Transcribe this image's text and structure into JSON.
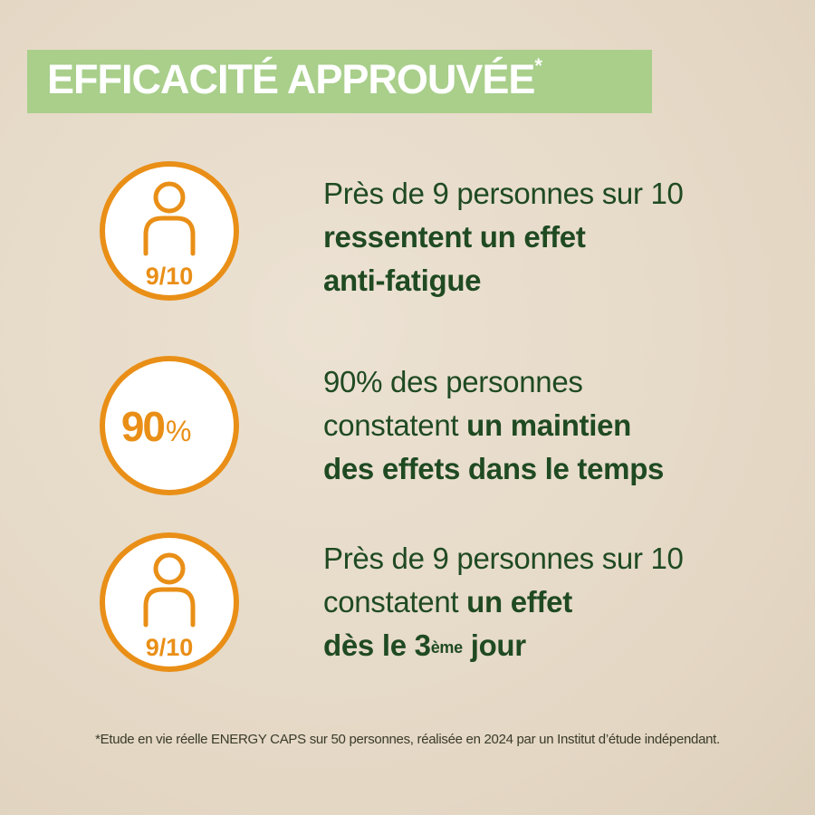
{
  "header": {
    "title": "EFFICACITÉ APPROUVÉE",
    "asterisk": "*"
  },
  "items": [
    {
      "badge": {
        "label": "9/10"
      },
      "lines": [
        [
          {
            "text": "Près de 9 personnes sur 10",
            "style": "regular"
          }
        ],
        [
          {
            "text": "ressentent un effet",
            "style": "bold"
          }
        ],
        [
          {
            "text": "anti-fatigue",
            "style": "bold"
          }
        ]
      ]
    },
    {
      "badge": {
        "number": "90",
        "unit": "%"
      },
      "lines": [
        [
          {
            "text": "90% des personnes",
            "style": "regular"
          }
        ],
        [
          {
            "text": "constatent ",
            "style": "regular"
          },
          {
            "text": "un maintien",
            "style": "bold"
          }
        ],
        [
          {
            "text": "des effets dans le temps",
            "style": "bold"
          }
        ]
      ]
    },
    {
      "badge": {
        "label": "9/10"
      },
      "lines": [
        [
          {
            "text": "Près de 9 personnes sur 10",
            "style": "regular"
          }
        ],
        [
          {
            "text": "constatent ",
            "style": "regular"
          },
          {
            "text": "un effet",
            "style": "bold"
          }
        ],
        [
          {
            "text": "dès le 3",
            "style": "bold"
          },
          {
            "text": "ème",
            "style": "sup"
          },
          {
            "text": " jour",
            "style": "bold"
          }
        ]
      ]
    }
  ],
  "footnote": "*Etude en vie réelle ENERGY CAPS sur 50 personnes, réalisée en 2024 par un Institut d’étude indépendant."
}
